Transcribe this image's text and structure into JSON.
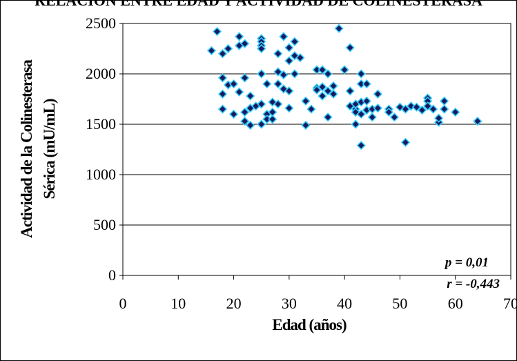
{
  "chart_data": {
    "type": "scatter",
    "title": "RELACION ENTRE EDAD Y ACTIVIDAD DE COLINESTERASA",
    "xlabel": "Edad (años)",
    "ylabel_line1": "Actividad de la Colinesterasa",
    "ylabel_line2": "Sérica (mU/mL)",
    "xlim": [
      0,
      70
    ],
    "ylim": [
      0,
      2500
    ],
    "x_ticks": [
      "0",
      "10",
      "20",
      "30",
      "40",
      "50",
      "60",
      "70"
    ],
    "y_ticks": [
      "0",
      "500",
      "1000",
      "1500",
      "2000",
      "2500"
    ],
    "grid": "horizontal",
    "marker_color": "#1a1a5e",
    "marker_edge_color": "#33ccff",
    "annotations": [
      "p = 0,01",
      "r = -0,443"
    ],
    "points": [
      [
        16,
        2230
      ],
      [
        17,
        2420
      ],
      [
        18,
        2200
      ],
      [
        19,
        2250
      ],
      [
        18,
        1960
      ],
      [
        19,
        1890
      ],
      [
        20,
        1900
      ],
      [
        21,
        1820
      ],
      [
        18,
        1800
      ],
      [
        18,
        1650
      ],
      [
        20,
        1600
      ],
      [
        21,
        2370
      ],
      [
        21,
        2280
      ],
      [
        22,
        2300
      ],
      [
        22,
        1960
      ],
      [
        22,
        1620
      ],
      [
        22,
        1530
      ],
      [
        23,
        1490
      ],
      [
        23,
        1780
      ],
      [
        23,
        1660
      ],
      [
        24,
        1680
      ],
      [
        25,
        2350
      ],
      [
        25,
        2320
      ],
      [
        25,
        2280
      ],
      [
        25,
        2250
      ],
      [
        25,
        2000
      ],
      [
        25,
        1700
      ],
      [
        25,
        1500
      ],
      [
        26,
        1600
      ],
      [
        26,
        1550
      ],
      [
        26,
        1900
      ],
      [
        27,
        1550
      ],
      [
        27,
        1620
      ],
      [
        27,
        1720
      ],
      [
        28,
        1700
      ],
      [
        28,
        1900
      ],
      [
        28,
        2020
      ],
      [
        28,
        2200
      ],
      [
        29,
        2370
      ],
      [
        29,
        1990
      ],
      [
        29,
        1850
      ],
      [
        30,
        2260
      ],
      [
        30,
        2130
      ],
      [
        30,
        1830
      ],
      [
        30,
        1660
      ],
      [
        31,
        2320
      ],
      [
        31,
        2180
      ],
      [
        31,
        2000
      ],
      [
        32,
        2160
      ],
      [
        33,
        1730
      ],
      [
        33,
        1490
      ],
      [
        34,
        1650
      ],
      [
        35,
        2040
      ],
      [
        35,
        1860
      ],
      [
        35,
        1840
      ],
      [
        36,
        2040
      ],
      [
        36,
        1870
      ],
      [
        36,
        1780
      ],
      [
        37,
        2000
      ],
      [
        37,
        1830
      ],
      [
        37,
        1570
      ],
      [
        38,
        1800
      ],
      [
        38,
        1880
      ],
      [
        39,
        2450
      ],
      [
        40,
        2040
      ],
      [
        41,
        2260
      ],
      [
        41,
        1830
      ],
      [
        41,
        1680
      ],
      [
        42,
        1650
      ],
      [
        42,
        1500
      ],
      [
        42,
        1620
      ],
      [
        42,
        1700
      ],
      [
        43,
        2000
      ],
      [
        43,
        1900
      ],
      [
        43,
        1720
      ],
      [
        43,
        1600
      ],
      [
        43,
        1290
      ],
      [
        44,
        1900
      ],
      [
        44,
        1730
      ],
      [
        44,
        1640
      ],
      [
        45,
        1570
      ],
      [
        45,
        1650
      ],
      [
        46,
        1800
      ],
      [
        46,
        1660
      ],
      [
        48,
        1650
      ],
      [
        48,
        1620
      ],
      [
        49,
        1570
      ],
      [
        50,
        1670
      ],
      [
        51,
        1320
      ],
      [
        51,
        1650
      ],
      [
        52,
        1680
      ],
      [
        53,
        1670
      ],
      [
        54,
        1640
      ],
      [
        55,
        1760
      ],
      [
        55,
        1730
      ],
      [
        55,
        1680
      ],
      [
        56,
        1650
      ],
      [
        57,
        1520
      ],
      [
        57,
        1560
      ],
      [
        58,
        1730
      ],
      [
        58,
        1650
      ],
      [
        60,
        1620
      ],
      [
        64,
        1530
      ]
    ]
  }
}
